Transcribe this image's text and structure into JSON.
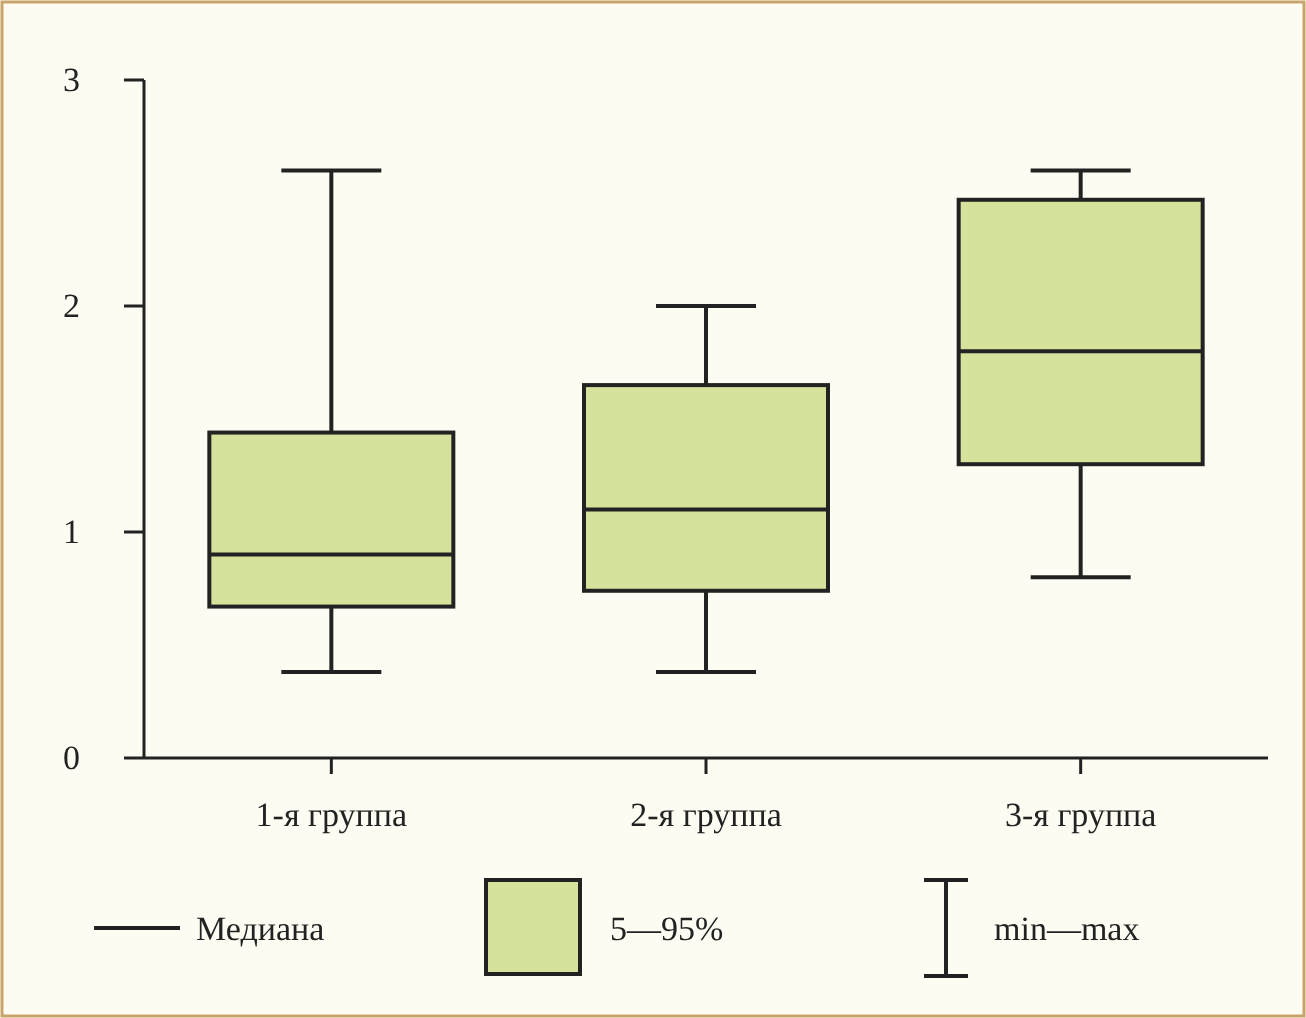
{
  "chart_data": {
    "type": "box",
    "categories": [
      "1-я группа",
      "2-я группа",
      "3-я группа"
    ],
    "boxes": [
      {
        "low": 0.38,
        "q1": 0.67,
        "median": 0.9,
        "q3": 1.44,
        "high": 2.6
      },
      {
        "low": 0.38,
        "q1": 0.74,
        "median": 1.1,
        "q3": 1.65,
        "high": 2.0
      },
      {
        "low": 0.8,
        "q1": 1.3,
        "median": 1.8,
        "q3": 2.47,
        "high": 2.6
      }
    ],
    "color": "#d5e29b",
    "ylim": [
      0,
      3
    ],
    "yticks": [
      0,
      1,
      2,
      3
    ],
    "grid": false,
    "annotations": [
      "Медиана",
      "5—95%",
      "min—max"
    ]
  }
}
